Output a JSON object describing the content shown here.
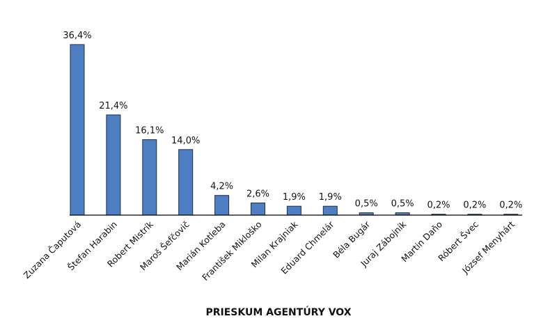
{
  "chart_data": {
    "type": "bar",
    "title": "PRIESKUM AGENTÚRY VOX",
    "xlabel": "",
    "ylabel": "",
    "ylim": [
      0,
      40
    ],
    "grid": false,
    "legend": "none",
    "bar_color": "#4f7fc3",
    "categories": [
      "Zuzana Čaputová",
      "Štefan Harabin",
      "Robert Mistrík",
      "Maroš Šefčovič",
      "Marián Kotleba",
      "František Mikloško",
      "Milan Krajniak",
      "Eduard Chmelár",
      "Béla Bugár",
      "Juraj Zábojník",
      "Martin Daňo",
      "Róbert Švec",
      "József Menyhárt"
    ],
    "values": [
      36.4,
      21.4,
      16.1,
      14.0,
      4.2,
      2.6,
      1.9,
      1.9,
      0.5,
      0.5,
      0.2,
      0.2,
      0.2
    ],
    "value_labels": [
      "36,4%",
      "21,4%",
      "16,1%",
      "14,0%",
      "4,2%",
      "2,6%",
      "1,9%",
      "1,9%",
      "0,5%",
      "0,5%",
      "0,2%",
      "0,2%",
      "0,2%"
    ]
  }
}
